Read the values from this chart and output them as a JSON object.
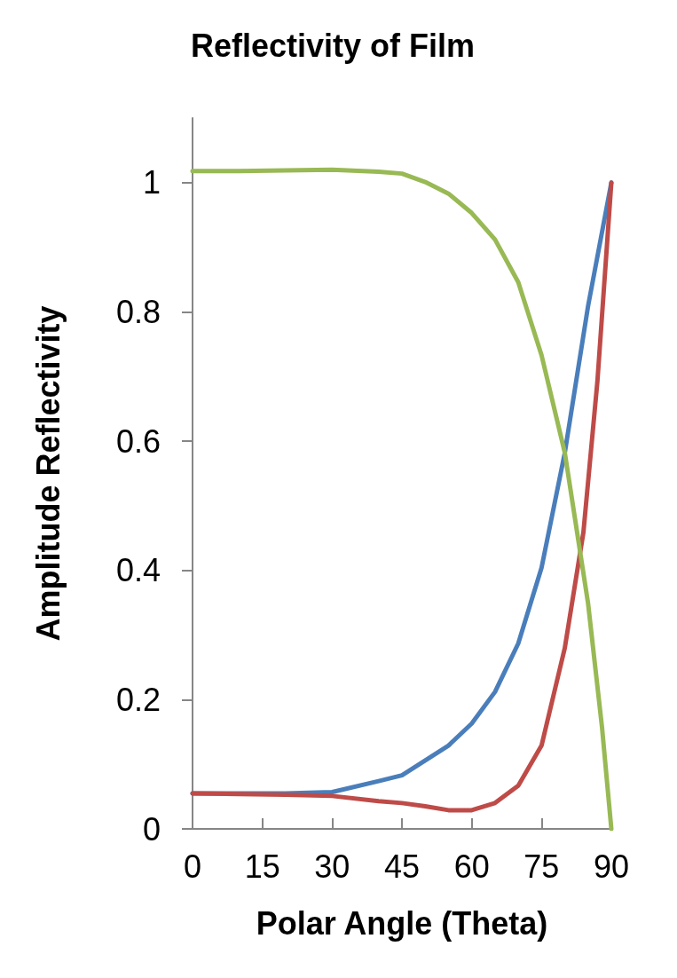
{
  "chart_data": {
    "type": "line",
    "title": "Reflectivity of Film",
    "xlabel": "Polar Angle (Theta)",
    "ylabel": "Amplitude Reflectivity",
    "xlim": [
      0,
      90
    ],
    "xticks": [
      0,
      15,
      30,
      45,
      60,
      75,
      90
    ],
    "ylim": [
      0,
      1.1
    ],
    "yticks": [
      0,
      0.2,
      0.4,
      0.6,
      0.8,
      1
    ],
    "grid": false,
    "marker": "none",
    "line_style": "solid",
    "series": [
      {
        "color": "#4a7ebb",
        "x": [
          0,
          10,
          20,
          30,
          40,
          45,
          50,
          55,
          60,
          65,
          70,
          75,
          80,
          85,
          90
        ],
        "values": [
          0.055,
          0.055,
          0.055,
          0.057,
          0.074,
          0.083,
          0.106,
          0.129,
          0.163,
          0.212,
          0.287,
          0.404,
          0.582,
          0.809,
          1.0
        ]
      },
      {
        "color": "#be4b48",
        "x": [
          0,
          10,
          20,
          30,
          40,
          45,
          50,
          55,
          60,
          65,
          70,
          75,
          80,
          84,
          87,
          90
        ],
        "values": [
          0.055,
          0.054,
          0.053,
          0.051,
          0.043,
          0.04,
          0.035,
          0.029,
          0.029,
          0.04,
          0.067,
          0.129,
          0.28,
          0.459,
          0.692,
          1.0
        ]
      },
      {
        "color": "#98b954",
        "x": [
          0,
          10,
          20,
          30,
          40,
          45,
          50,
          55,
          60,
          65,
          70,
          75,
          80,
          85,
          88,
          90
        ],
        "values": [
          1.018,
          1.018,
          1.019,
          1.02,
          1.017,
          1.014,
          1.001,
          0.983,
          0.953,
          0.912,
          0.846,
          0.733,
          0.582,
          0.349,
          0.157,
          0
        ]
      }
    ]
  }
}
